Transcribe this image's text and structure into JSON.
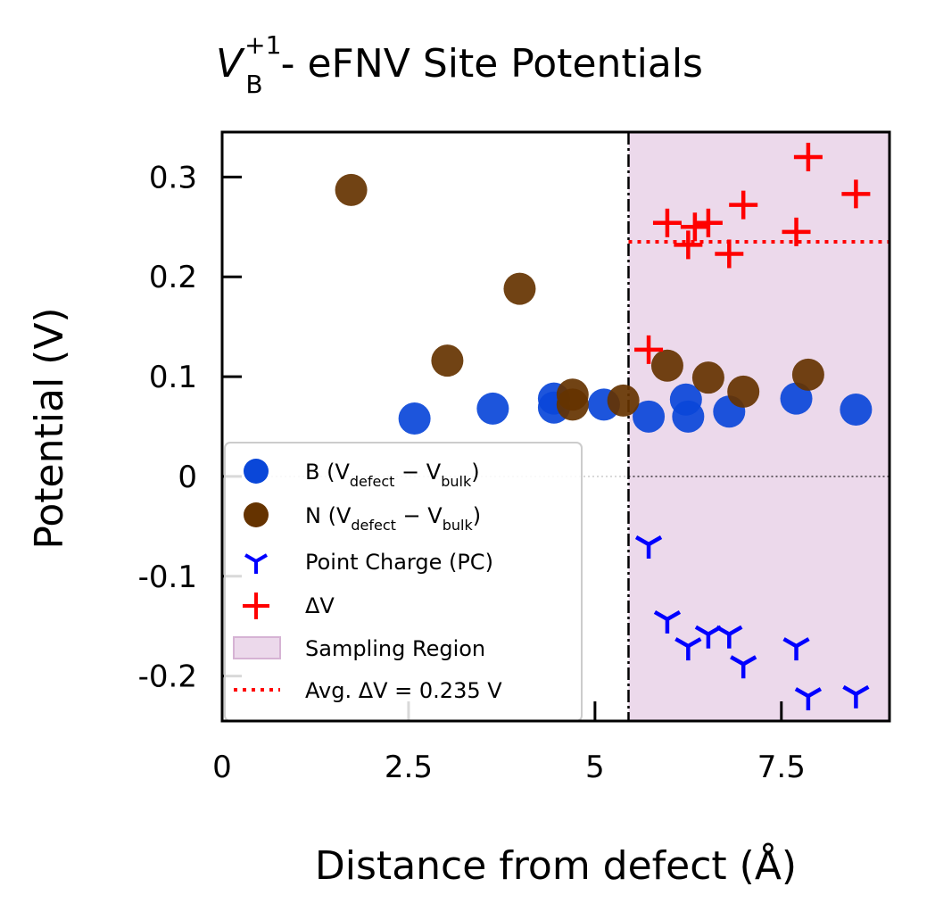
{
  "chart_data": {
    "type": "scatter",
    "title": {
      "main": "V",
      "subscript": "B",
      "superscript": "+1",
      "rest": " - eFNV Site Potentials"
    },
    "xlabel": "Distance from defect (Å)",
    "ylabel": "Potential (V)",
    "xlim": [
      0,
      8.95
    ],
    "ylim": [
      -0.245,
      0.345
    ],
    "xticks": [
      0,
      2.5,
      5,
      7.5
    ],
    "xtick_labels": [
      "0",
      "2.5",
      "5",
      "7.5"
    ],
    "yticks": [
      -0.2,
      -0.1,
      0,
      0.1,
      0.2,
      0.3
    ],
    "ytick_labels": [
      "-0.2",
      "-0.1",
      "0",
      "0.1",
      "0.2",
      "0.3"
    ],
    "sampling_region": {
      "x_start": 5.45,
      "x_end": 8.95,
      "color": "#ecd9eb"
    },
    "cutoff_line_x": 5.45,
    "zero_line": true,
    "avg_delta_v": 0.235,
    "grid": false,
    "legend_position": "lower-left",
    "series": [
      {
        "name": "B (V_defect − V_bulk)",
        "marker": "circle",
        "color": "#0a47d9",
        "points": [
          [
            2.58,
            0.058
          ],
          [
            3.63,
            0.068
          ],
          [
            4.45,
            0.078
          ],
          [
            4.45,
            0.069
          ],
          [
            5.12,
            0.072
          ],
          [
            5.72,
            0.06
          ],
          [
            6.22,
            0.077
          ],
          [
            6.25,
            0.06
          ],
          [
            6.8,
            0.065
          ],
          [
            7.7,
            0.078
          ],
          [
            8.5,
            0.067
          ]
        ]
      },
      {
        "name": "N (V_defect − V_bulk)",
        "marker": "circle",
        "color": "#653300",
        "points": [
          [
            1.73,
            0.287
          ],
          [
            3.02,
            0.116
          ],
          [
            3.99,
            0.188
          ],
          [
            4.7,
            0.082
          ],
          [
            4.7,
            0.072
          ],
          [
            5.38,
            0.076
          ],
          [
            5.97,
            0.111
          ],
          [
            6.52,
            0.099
          ],
          [
            6.99,
            0.085
          ],
          [
            7.86,
            0.102
          ]
        ]
      },
      {
        "name": "Point Charge (PC)",
        "marker": "tri_down",
        "color": "#0000ff",
        "points": [
          [
            5.72,
            -0.068
          ],
          [
            5.97,
            -0.143
          ],
          [
            6.25,
            -0.17
          ],
          [
            6.52,
            -0.158
          ],
          [
            6.8,
            -0.158
          ],
          [
            6.99,
            -0.188
          ],
          [
            7.7,
            -0.17
          ],
          [
            7.86,
            -0.22
          ],
          [
            8.5,
            -0.218
          ]
        ]
      },
      {
        "name": "ΔV",
        "marker": "plus",
        "color": "#ff0000",
        "points": [
          [
            5.72,
            0.127
          ],
          [
            5.97,
            0.254
          ],
          [
            6.25,
            0.232
          ],
          [
            6.34,
            0.25
          ],
          [
            6.52,
            0.254
          ],
          [
            6.8,
            0.223
          ],
          [
            6.99,
            0.272
          ],
          [
            7.7,
            0.245
          ],
          [
            7.86,
            0.32
          ],
          [
            8.5,
            0.283
          ]
        ]
      }
    ]
  },
  "legend": {
    "b_label": "B (V",
    "b_sub1": "defect",
    "b_mid": " − V",
    "b_sub2": "bulk",
    "b_end": ")",
    "n_label": "N (V",
    "n_sub1": "defect",
    "n_mid": " − V",
    "n_sub2": "bulk",
    "n_end": ")",
    "pc_label": "Point Charge (PC)",
    "dv_label": "ΔV",
    "region_label": "Sampling Region",
    "avg_label": "Avg. ΔV = 0.235 V"
  }
}
